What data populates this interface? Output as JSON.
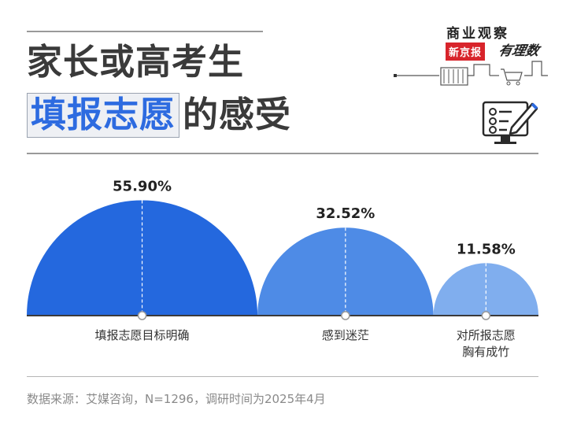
{
  "header": {
    "title_line1": "家长或高考生",
    "title_highlight": "填报志愿",
    "title_rest": "的感受"
  },
  "brand": {
    "name": "商业观察",
    "tag": "新京报",
    "script": "有理数"
  },
  "source": "数据来源：艾媒咨询，N=1296，调研时间为2025年4月",
  "colors": {
    "highlight_text": "#2d6be0",
    "semi_1": "#2468de",
    "semi_2": "#4e8be6",
    "semi_3": "#80aeee"
  },
  "chart_data": {
    "type": "semicircle",
    "unit": "%",
    "series": [
      {
        "category": "填报志愿目标明确",
        "value": 55.9,
        "label": "55.90%"
      },
      {
        "category": "感到迷茫",
        "value": 32.52,
        "label": "32.52%"
      },
      {
        "category_lines": [
          "对所报志愿",
          "胸有成竹"
        ],
        "value": 11.58,
        "label": "11.58%"
      }
    ]
  }
}
